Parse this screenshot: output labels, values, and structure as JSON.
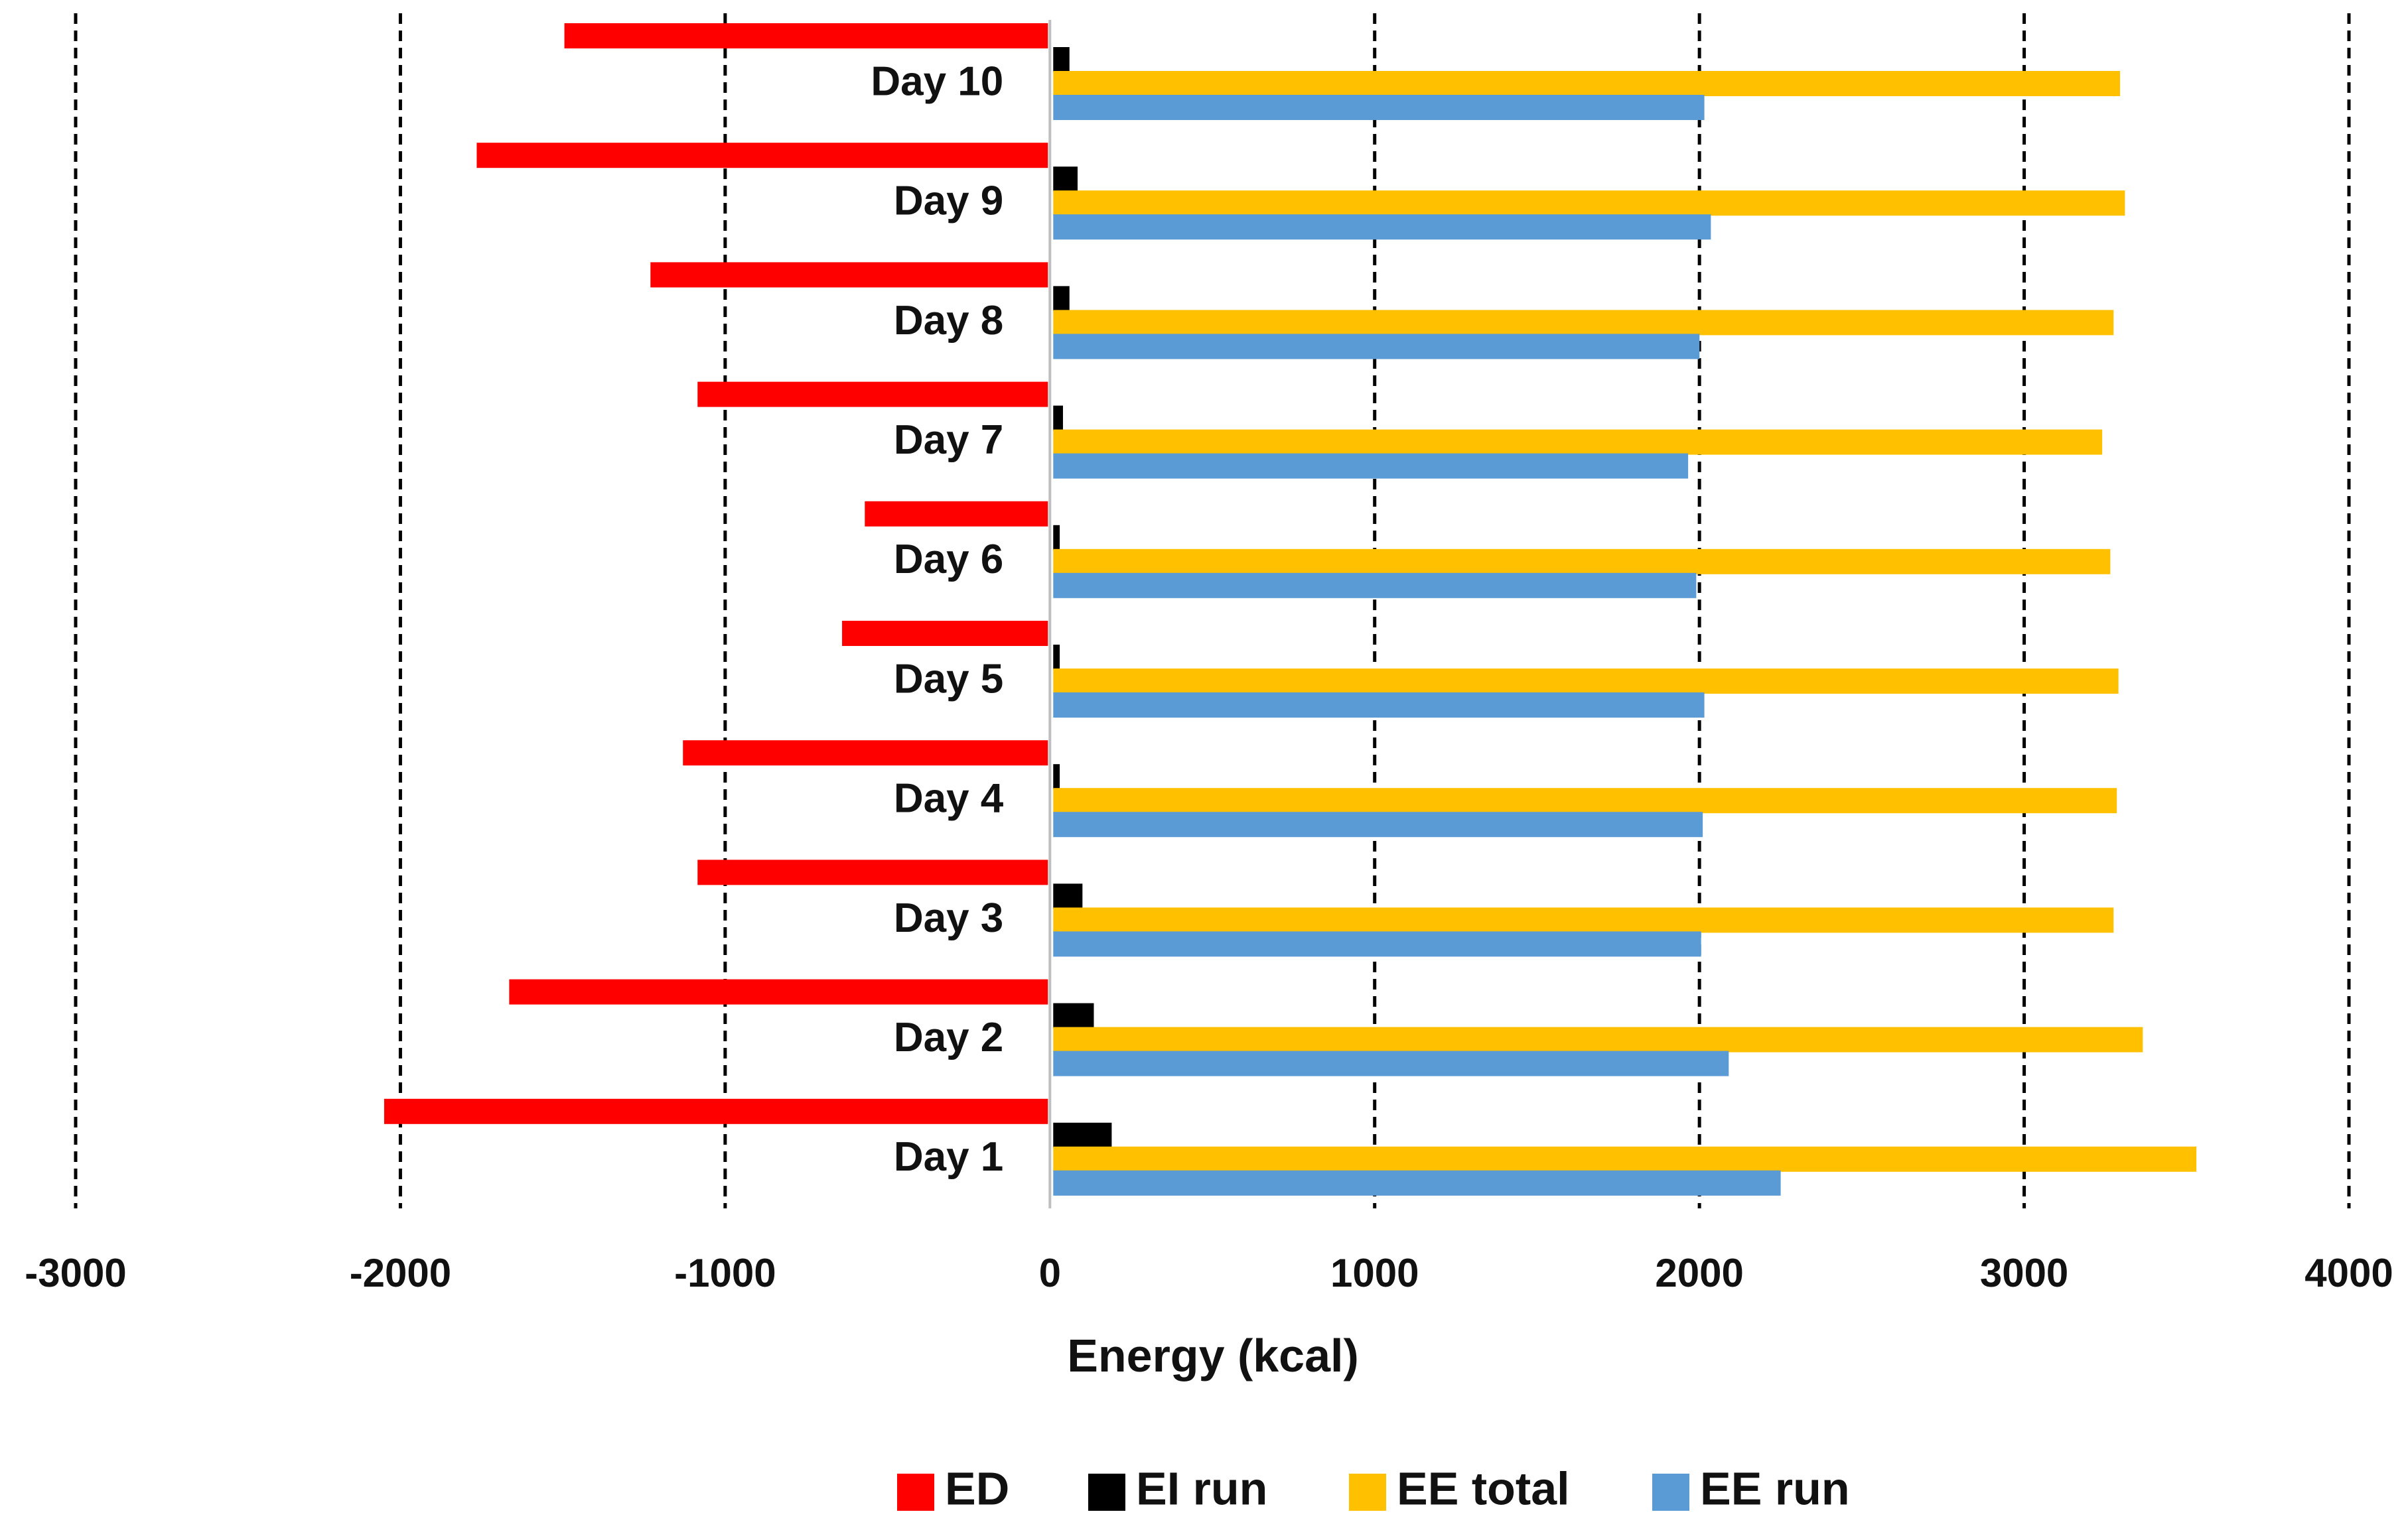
{
  "chart_data": {
    "type": "bar",
    "orientation": "horizontal",
    "title": "",
    "xlabel": "Energy (kcal)",
    "ylabel": "",
    "xlim": [
      -3000,
      4000
    ],
    "xticks": [
      -3000,
      -2000,
      -1000,
      0,
      1000,
      2000,
      3000,
      4000
    ],
    "grid": "vertical dashed",
    "legend_position": "bottom",
    "categories": [
      "Day 1",
      "Day 2",
      "Day 3",
      "Day 4",
      "Day 5",
      "Day 6",
      "Day 7",
      "Day 8",
      "Day 9",
      "Day 10"
    ],
    "series": [
      {
        "name": "ED",
        "color": "#ff0000",
        "values": [
          -2050,
          -1665,
          -1085,
          -1130,
          -640,
          -570,
          -1085,
          -1230,
          -1765,
          -1495
        ]
      },
      {
        "name": "EI run",
        "color": "#000000",
        "values": [
          180,
          125,
          90,
          20,
          20,
          20,
          30,
          50,
          75,
          50
        ]
      },
      {
        "name": "EE total",
        "color": "#ffc000",
        "values": [
          3520,
          3355,
          3265,
          3275,
          3280,
          3255,
          3230,
          3265,
          3300,
          3285
        ]
      },
      {
        "name": "EE run",
        "color": "#5b9bd5",
        "values": [
          2240,
          2080,
          1995,
          2000,
          2005,
          1980,
          1955,
          1990,
          2025,
          2005
        ]
      }
    ]
  }
}
